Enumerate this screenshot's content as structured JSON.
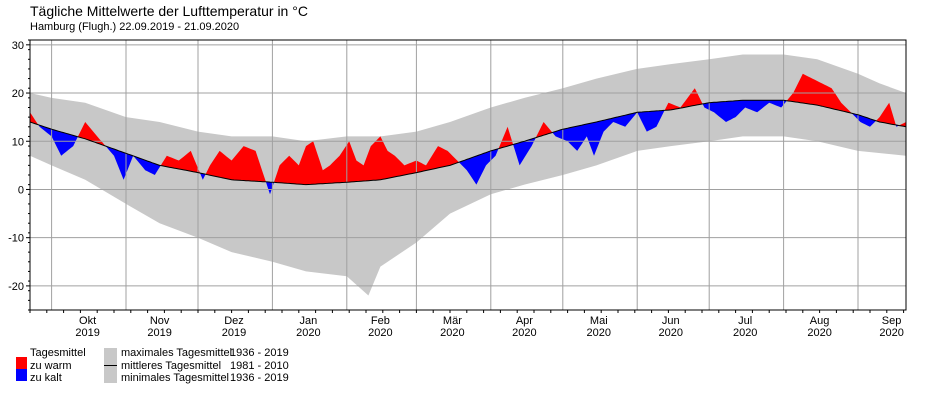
{
  "chart_data": {
    "type": "area",
    "title": "Tägliche Mittelwerte der Lufttemperatur in °C",
    "subtitle": "Hamburg (Flugh.)  22.09.2019 - 21.09.2020",
    "x_start": "2019-09-22",
    "x_end": "2020-09-21",
    "ylim": [
      -25,
      31
    ],
    "yticks": [
      -20,
      -10,
      0,
      10,
      20,
      30
    ],
    "grid": true,
    "month_labels": [
      {
        "month": "Okt",
        "year": "2019",
        "date": "2019-10-16"
      },
      {
        "month": "Nov",
        "year": "2019",
        "date": "2019-11-15"
      },
      {
        "month": "Dez",
        "year": "2019",
        "date": "2019-12-16"
      },
      {
        "month": "Jan",
        "year": "2020",
        "date": "2020-01-16"
      },
      {
        "month": "Feb",
        "year": "2020",
        "date": "2020-02-15"
      },
      {
        "month": "Mär",
        "year": "2020",
        "date": "2020-03-16"
      },
      {
        "month": "Apr",
        "year": "2020",
        "date": "2020-04-15"
      },
      {
        "month": "Mai",
        "year": "2020",
        "date": "2020-05-16"
      },
      {
        "month": "Jun",
        "year": "2020",
        "date": "2020-06-15"
      },
      {
        "month": "Jul",
        "year": "2020",
        "date": "2020-07-16"
      },
      {
        "month": "Aug",
        "year": "2020",
        "date": "2020-08-16"
      },
      {
        "month": "Sep",
        "year": "2020",
        "date": "2020-09-15"
      }
    ],
    "month_boundaries": [
      "2019-10-01",
      "2019-11-01",
      "2019-12-01",
      "2020-01-01",
      "2020-02-01",
      "2020-03-01",
      "2020-04-01",
      "2020-05-01",
      "2020-06-01",
      "2020-07-01",
      "2020-08-01",
      "2020-09-01"
    ],
    "series": [
      {
        "key": "max",
        "name": "maximales Tagesmittel",
        "points": [
          [
            "2019-09-22",
            20
          ],
          [
            "2019-10-01",
            19
          ],
          [
            "2019-10-15",
            18
          ],
          [
            "2019-11-01",
            15
          ],
          [
            "2019-11-15",
            14
          ],
          [
            "2019-12-01",
            12
          ],
          [
            "2019-12-15",
            11
          ],
          [
            "2020-01-01",
            11
          ],
          [
            "2020-01-15",
            10
          ],
          [
            "2020-02-01",
            11
          ],
          [
            "2020-02-15",
            11
          ],
          [
            "2020-03-01",
            12
          ],
          [
            "2020-03-15",
            14
          ],
          [
            "2020-04-01",
            17
          ],
          [
            "2020-04-15",
            19
          ],
          [
            "2020-05-01",
            21
          ],
          [
            "2020-05-15",
            23
          ],
          [
            "2020-06-01",
            25
          ],
          [
            "2020-06-15",
            26
          ],
          [
            "2020-07-01",
            27
          ],
          [
            "2020-07-15",
            28
          ],
          [
            "2020-08-01",
            28
          ],
          [
            "2020-08-15",
            27
          ],
          [
            "2020-09-01",
            24
          ],
          [
            "2020-09-10",
            22
          ],
          [
            "2020-09-21",
            20
          ]
        ]
      },
      {
        "key": "mean",
        "name": "mittleres Tagesmittel",
        "points": [
          [
            "2019-09-22",
            14
          ],
          [
            "2019-10-01",
            12.5
          ],
          [
            "2019-10-15",
            10.5
          ],
          [
            "2019-11-01",
            7.5
          ],
          [
            "2019-11-15",
            5
          ],
          [
            "2019-12-01",
            3.5
          ],
          [
            "2019-12-15",
            2
          ],
          [
            "2020-01-01",
            1.5
          ],
          [
            "2020-01-15",
            1
          ],
          [
            "2020-02-01",
            1.5
          ],
          [
            "2020-02-15",
            2
          ],
          [
            "2020-03-01",
            3.5
          ],
          [
            "2020-03-15",
            5
          ],
          [
            "2020-04-01",
            8
          ],
          [
            "2020-04-15",
            10
          ],
          [
            "2020-05-01",
            12.5
          ],
          [
            "2020-05-15",
            14
          ],
          [
            "2020-06-01",
            16
          ],
          [
            "2020-06-15",
            16.5
          ],
          [
            "2020-07-01",
            18
          ],
          [
            "2020-07-15",
            18.5
          ],
          [
            "2020-08-01",
            18.5
          ],
          [
            "2020-08-15",
            17.5
          ],
          [
            "2020-09-01",
            15.5
          ],
          [
            "2020-09-10",
            14
          ],
          [
            "2020-09-21",
            13
          ]
        ]
      },
      {
        "key": "min",
        "name": "minimales Tagesmittel",
        "points": [
          [
            "2019-09-22",
            7
          ],
          [
            "2019-10-01",
            5
          ],
          [
            "2019-10-15",
            2
          ],
          [
            "2019-11-01",
            -3
          ],
          [
            "2019-11-15",
            -7
          ],
          [
            "2019-12-01",
            -10
          ],
          [
            "2019-12-15",
            -13
          ],
          [
            "2020-01-01",
            -15
          ],
          [
            "2020-01-15",
            -17
          ],
          [
            "2020-02-01",
            -18
          ],
          [
            "2020-02-10",
            -22
          ],
          [
            "2020-02-15",
            -16
          ],
          [
            "2020-03-01",
            -11
          ],
          [
            "2020-03-15",
            -5
          ],
          [
            "2020-04-01",
            -1
          ],
          [
            "2020-04-15",
            1
          ],
          [
            "2020-05-01",
            3
          ],
          [
            "2020-05-15",
            5
          ],
          [
            "2020-06-01",
            8
          ],
          [
            "2020-06-15",
            9
          ],
          [
            "2020-07-01",
            10
          ],
          [
            "2020-07-15",
            11
          ],
          [
            "2020-08-01",
            11
          ],
          [
            "2020-08-15",
            10
          ],
          [
            "2020-09-01",
            8
          ],
          [
            "2020-09-21",
            7
          ]
        ]
      },
      {
        "key": "actual",
        "name": "Tagesmittel",
        "points": [
          [
            "2019-09-22",
            16
          ],
          [
            "2019-09-26",
            13
          ],
          [
            "2019-10-01",
            11
          ],
          [
            "2019-10-05",
            7
          ],
          [
            "2019-10-10",
            9
          ],
          [
            "2019-10-15",
            14
          ],
          [
            "2019-10-20",
            11
          ],
          [
            "2019-10-27",
            7
          ],
          [
            "2019-10-31",
            2
          ],
          [
            "2019-11-04",
            7
          ],
          [
            "2019-11-09",
            4
          ],
          [
            "2019-11-13",
            3
          ],
          [
            "2019-11-18",
            7
          ],
          [
            "2019-11-23",
            6
          ],
          [
            "2019-11-28",
            8
          ],
          [
            "2019-12-03",
            2
          ],
          [
            "2019-12-06",
            5
          ],
          [
            "2019-12-10",
            8
          ],
          [
            "2019-12-15",
            6
          ],
          [
            "2019-12-20",
            9
          ],
          [
            "2019-12-25",
            8
          ],
          [
            "2019-12-29",
            2
          ],
          [
            "2019-12-31",
            -1
          ],
          [
            "2020-01-04",
            5
          ],
          [
            "2020-01-08",
            7
          ],
          [
            "2020-01-12",
            5
          ],
          [
            "2020-01-15",
            9
          ],
          [
            "2020-01-18",
            10
          ],
          [
            "2020-01-22",
            4
          ],
          [
            "2020-01-25",
            5
          ],
          [
            "2020-01-29",
            7
          ],
          [
            "2020-02-02",
            10
          ],
          [
            "2020-02-05",
            6
          ],
          [
            "2020-02-08",
            5
          ],
          [
            "2020-02-11",
            9
          ],
          [
            "2020-02-15",
            11
          ],
          [
            "2020-02-18",
            8
          ],
          [
            "2020-02-21",
            7
          ],
          [
            "2020-02-25",
            5
          ],
          [
            "2020-03-01",
            6
          ],
          [
            "2020-03-05",
            5
          ],
          [
            "2020-03-10",
            9
          ],
          [
            "2020-03-14",
            8
          ],
          [
            "2020-03-18",
            6
          ],
          [
            "2020-03-22",
            4
          ],
          [
            "2020-03-26",
            1
          ],
          [
            "2020-03-30",
            5
          ],
          [
            "2020-04-03",
            7
          ],
          [
            "2020-04-08",
            13
          ],
          [
            "2020-04-13",
            5
          ],
          [
            "2020-04-18",
            9
          ],
          [
            "2020-04-23",
            14
          ],
          [
            "2020-04-28",
            11
          ],
          [
            "2020-05-03",
            10
          ],
          [
            "2020-05-07",
            8
          ],
          [
            "2020-05-11",
            11
          ],
          [
            "2020-05-14",
            7
          ],
          [
            "2020-05-18",
            12
          ],
          [
            "2020-05-22",
            14
          ],
          [
            "2020-05-27",
            13
          ],
          [
            "2020-06-01",
            16
          ],
          [
            "2020-06-05",
            12
          ],
          [
            "2020-06-09",
            13
          ],
          [
            "2020-06-14",
            18
          ],
          [
            "2020-06-19",
            17
          ],
          [
            "2020-06-25",
            21
          ],
          [
            "2020-06-29",
            17
          ],
          [
            "2020-07-03",
            16
          ],
          [
            "2020-07-08",
            14
          ],
          [
            "2020-07-12",
            15
          ],
          [
            "2020-07-16",
            17
          ],
          [
            "2020-07-21",
            16
          ],
          [
            "2020-07-26",
            18
          ],
          [
            "2020-07-31",
            17
          ],
          [
            "2020-08-05",
            20
          ],
          [
            "2020-08-09",
            24
          ],
          [
            "2020-08-13",
            23
          ],
          [
            "2020-08-17",
            22
          ],
          [
            "2020-08-21",
            21
          ],
          [
            "2020-08-25",
            18
          ],
          [
            "2020-08-29",
            16
          ],
          [
            "2020-09-02",
            14
          ],
          [
            "2020-09-06",
            13
          ],
          [
            "2020-09-10",
            15
          ],
          [
            "2020-09-14",
            18
          ],
          [
            "2020-09-17",
            13
          ],
          [
            "2020-09-21",
            14
          ]
        ]
      }
    ],
    "legend": {
      "group_title": "Tagesmittel",
      "warm_label": "zu warm",
      "cold_label": "zu kalt",
      "max_label": "maximales Tagesmittel",
      "max_period": "1936 - 2019",
      "mean_label": "mittleres Tagesmittel",
      "mean_period": "1981 - 2010",
      "min_label": "minimales Tagesmittel",
      "min_period": "1936 - 2019"
    },
    "colors": {
      "warm": "#ff0000",
      "cold": "#0000ff",
      "band": "#c8c8c8",
      "mean_line": "#000000",
      "grid": "#a0a0a0"
    }
  }
}
